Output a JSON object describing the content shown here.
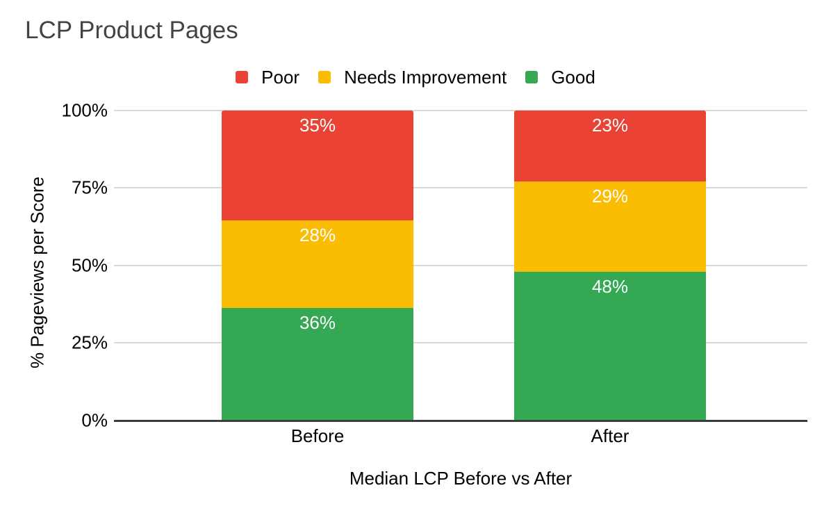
{
  "page": {
    "background": "#ffffff"
  },
  "chart_data": {
    "type": "bar",
    "stacked": true,
    "percent_stacked": true,
    "title": "LCP Product Pages",
    "title_color": "#434343",
    "xlabel": "Median LCP Before vs After",
    "ylabel": "% Pageviews per Score",
    "categories": [
      "Before",
      "After"
    ],
    "series": [
      {
        "name": "Poor",
        "color": "#EA4335",
        "values": [
          35,
          23
        ]
      },
      {
        "name": "Needs Improvement",
        "color": "#FBBC04",
        "values": [
          28,
          29
        ]
      },
      {
        "name": "Good",
        "color": "#34A853",
        "values": [
          36,
          48
        ]
      }
    ],
    "yticks": [
      "0%",
      "25%",
      "50%",
      "75%",
      "100%"
    ],
    "ylim": [
      0,
      100
    ],
    "grid": true,
    "gridline_color": "#d9d9d9",
    "axis_line_color": "#3c3c3c",
    "legend_position": "top",
    "data_label_format": "{value}%",
    "data_label_color": "#ffffff",
    "text_color": "#000000"
  }
}
